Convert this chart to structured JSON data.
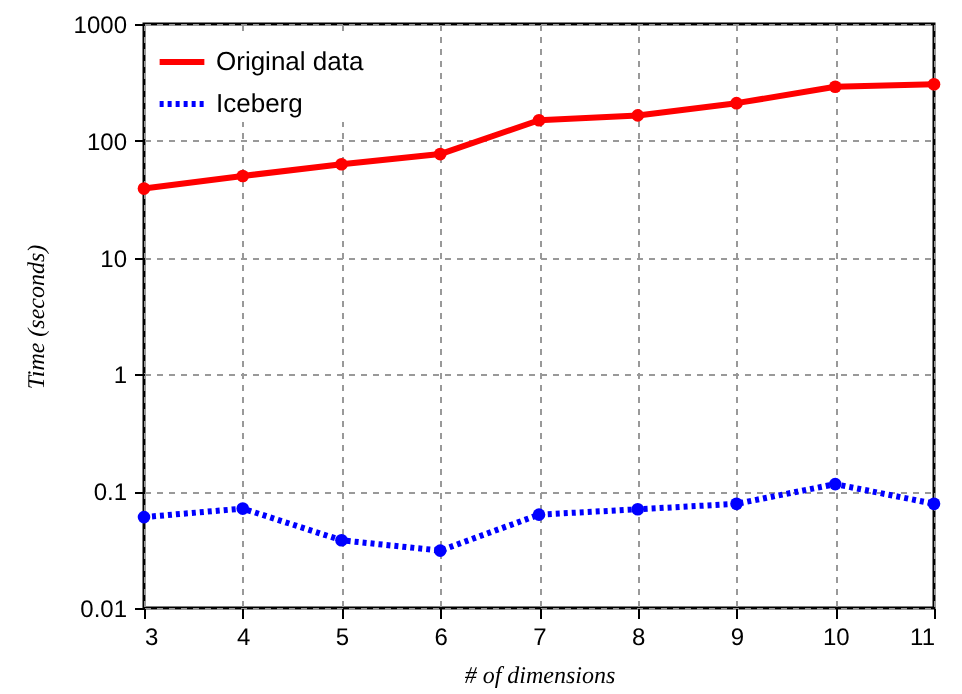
{
  "chart_data": {
    "type": "line",
    "xlabel": "# of dimensions",
    "ylabel": "Time (seconds)",
    "x": [
      3,
      4,
      5,
      6,
      7,
      8,
      9,
      10,
      11
    ],
    "series": [
      {
        "name": "Original data",
        "color": "#ff0000",
        "line_style": "solid",
        "values": [
          39,
          50,
          63,
          77,
          150,
          165,
          210,
          290,
          305
        ]
      },
      {
        "name": "Iceberg",
        "color": "#0000ff",
        "line_style": "dotted",
        "values": [
          0.06,
          0.071,
          0.038,
          0.031,
          0.063,
          0.07,
          0.078,
          0.115,
          0.078
        ]
      }
    ],
    "xlim": [
      3,
      11
    ],
    "xticks": [
      3,
      4,
      5,
      6,
      7,
      8,
      9,
      10,
      11
    ],
    "ylim": [
      0.01,
      1000
    ],
    "yticks": [
      0.01,
      0.1,
      1,
      10,
      100,
      1000
    ],
    "log": "y",
    "grid": true,
    "legend": "top left",
    "marker": "circle"
  }
}
